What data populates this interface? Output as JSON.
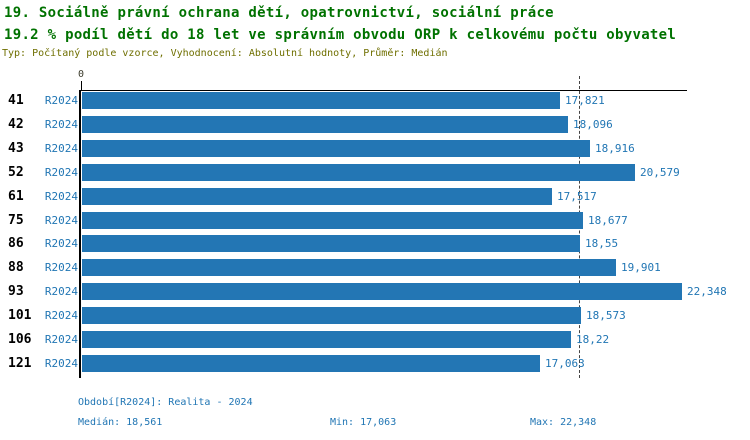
{
  "header": {
    "title": "19. Sociálně právní ochrana dětí, opatrovnictví, sociální práce",
    "subtitle": "19.2 % podíl dětí do 18 let ve správním obvodu ORP k celkovému počtu obyvatel",
    "meta": "Typ: Počítaný podle vzorce, Vyhodnocení: Absolutní hodnoty, Průměr: Medián"
  },
  "chart_data": {
    "type": "bar",
    "orientation": "horizontal",
    "title": "19.2 % podíl dětí do 18 let ve správním obvodu ORP k celkovému počtu obyvatel",
    "categories": [
      "41",
      "42",
      "43",
      "52",
      "61",
      "75",
      "86",
      "88",
      "93",
      "101",
      "106",
      "121"
    ],
    "series_label": "R2024",
    "values": [
      17.821,
      18.096,
      18.916,
      20.579,
      17.517,
      18.677,
      18.55,
      19.901,
      22.348,
      18.573,
      18.22,
      17.063
    ],
    "value_labels": [
      "17,821",
      "18,096",
      "18,916",
      "20,579",
      "17,517",
      "18,677",
      "18,55",
      "19,901",
      "22,348",
      "18,573",
      "18,22",
      "17,063"
    ],
    "axis_origin_label": "0",
    "xlim": [
      0,
      22.348
    ],
    "median": 18.561,
    "median_line_style": "dashed",
    "bar_color": "#2376B4",
    "grid": false,
    "legend_position": "none"
  },
  "footer": {
    "period": "Období[R2024]: Realita - 2024",
    "median": "Medián: 18,561",
    "min": "Min: 17,063",
    "max": "Max: 22,348"
  },
  "colors": {
    "title_green": "#007200",
    "meta_olive": "#6F6F00",
    "bar_blue": "#2376B4",
    "text_blue": "#2176B4",
    "axis_black": "#000000"
  }
}
